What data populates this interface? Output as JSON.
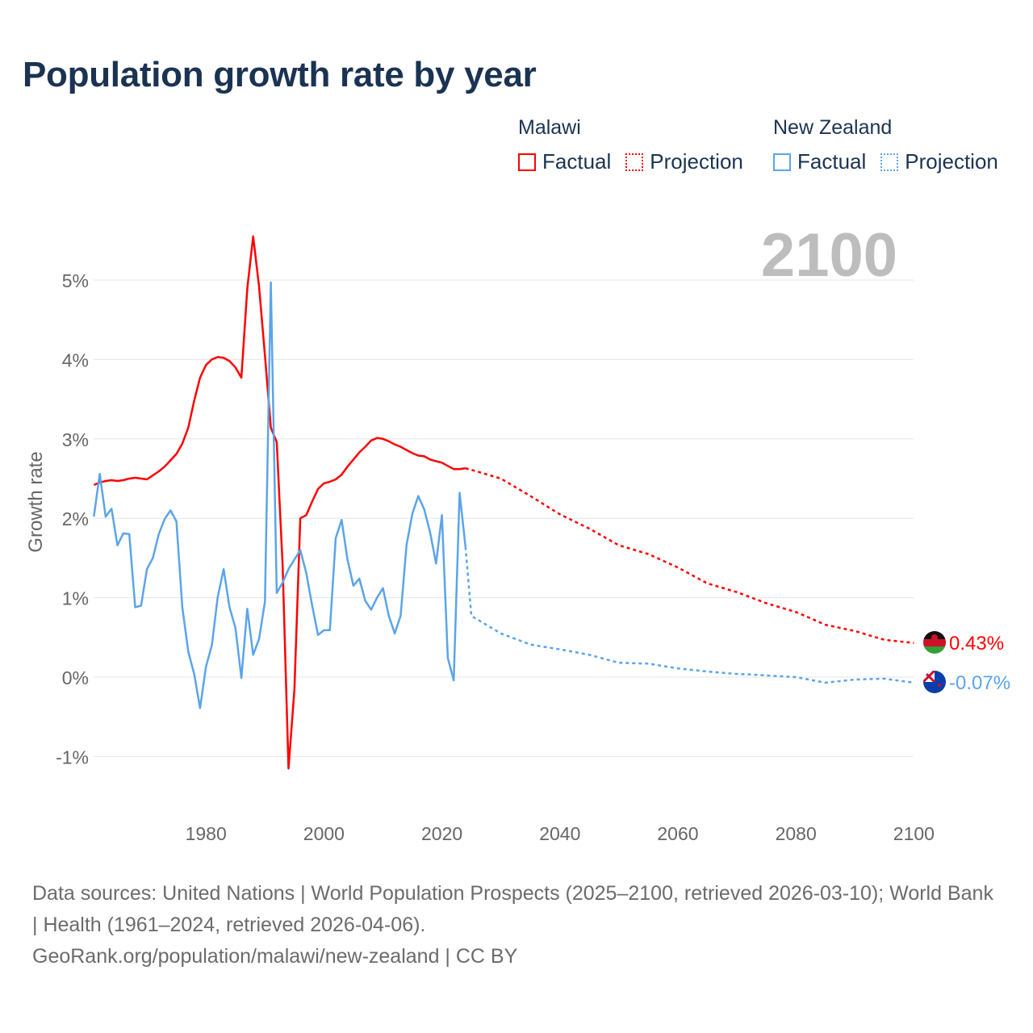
{
  "title": "Population growth rate by year",
  "legend": {
    "groups": [
      {
        "name": "Malawi",
        "factual": "Factual",
        "projection": "Projection",
        "color": "#ff0000"
      },
      {
        "name": "New Zealand",
        "factual": "Factual",
        "projection": "Projection",
        "color": "#5ba4ea"
      }
    ]
  },
  "footer": {
    "sources": "Data sources: United Nations | World Population Prospects (2025–2100, retrieved 2026-03-10); World Bank | Health (1961–2024, retrieved 2026-04-06).",
    "link": "GeoRank.org/population/malawi/new-zealand | CC BY"
  },
  "chart_data": {
    "type": "line",
    "title": "Population growth rate by year",
    "xlabel": "",
    "ylabel": "Growth rate",
    "xlim": [
      1961,
      2100
    ],
    "ylim": [
      -1.5,
      5.6
    ],
    "year_display": "2100",
    "x_ticks": [
      1980,
      2000,
      2020,
      2040,
      2060,
      2080,
      2100
    ],
    "y_ticks": [
      -1,
      0,
      1,
      2,
      3,
      4,
      5
    ],
    "y_tick_labels": [
      "-1%",
      "0%",
      "1%",
      "2%",
      "3%",
      "4%",
      "5%"
    ],
    "grid": true,
    "series": [
      {
        "name": "Malawi",
        "kind": "Factual",
        "color": "#ff0000",
        "dash": false,
        "x": [
          1961,
          1962,
          1963,
          1964,
          1965,
          1966,
          1967,
          1968,
          1969,
          1970,
          1971,
          1972,
          1973,
          1974,
          1975,
          1976,
          1977,
          1978,
          1979,
          1980,
          1981,
          1982,
          1983,
          1984,
          1985,
          1986,
          1987,
          1988,
          1989,
          1990,
          1991,
          1992,
          1993,
          1994,
          1995,
          1996,
          1997,
          1998,
          1999,
          2000,
          2001,
          2002,
          2003,
          2004,
          2005,
          2006,
          2007,
          2008,
          2009,
          2010,
          2011,
          2012,
          2013,
          2014,
          2015,
          2016,
          2017,
          2018,
          2019,
          2020,
          2021,
          2022,
          2023,
          2024
        ],
        "y": [
          2.42,
          2.45,
          2.47,
          2.48,
          2.47,
          2.48,
          2.5,
          2.51,
          2.5,
          2.49,
          2.54,
          2.59,
          2.65,
          2.73,
          2.81,
          2.94,
          3.14,
          3.48,
          3.77,
          3.93,
          4.0,
          4.03,
          4.02,
          3.98,
          3.9,
          3.77,
          4.89,
          5.55,
          4.92,
          4.05,
          3.14,
          2.96,
          1.41,
          -1.15,
          -0.16,
          2.0,
          2.04,
          2.21,
          2.37,
          2.44,
          2.46,
          2.49,
          2.55,
          2.65,
          2.74,
          2.83,
          2.9,
          2.98,
          3.01,
          3.0,
          2.97,
          2.93,
          2.9,
          2.86,
          2.82,
          2.79,
          2.78,
          2.74,
          2.72,
          2.7,
          2.66,
          2.62,
          2.62,
          2.63
        ]
      },
      {
        "name": "Malawi",
        "kind": "Projection",
        "color": "#ff0000",
        "dash": true,
        "x": [
          2024,
          2025,
          2030,
          2035,
          2040,
          2045,
          2050,
          2055,
          2060,
          2065,
          2070,
          2075,
          2080,
          2085,
          2090,
          2095,
          2100
        ],
        "y": [
          2.63,
          2.61,
          2.5,
          2.28,
          2.05,
          1.87,
          1.66,
          1.55,
          1.38,
          1.18,
          1.07,
          0.93,
          0.82,
          0.66,
          0.58,
          0.47,
          0.43
        ]
      },
      {
        "name": "New Zealand",
        "kind": "Factual",
        "color": "#5ba4ea",
        "dash": false,
        "x": [
          1961,
          1962,
          1963,
          1964,
          1965,
          1966,
          1967,
          1968,
          1969,
          1970,
          1971,
          1972,
          1973,
          1974,
          1975,
          1976,
          1977,
          1978,
          1979,
          1980,
          1981,
          1982,
          1983,
          1984,
          1985,
          1986,
          1987,
          1988,
          1989,
          1990,
          1991,
          1992,
          1993,
          1994,
          1995,
          1996,
          1997,
          1998,
          1999,
          2000,
          2001,
          2002,
          2003,
          2004,
          2005,
          2006,
          2007,
          2008,
          2009,
          2010,
          2011,
          2012,
          2013,
          2014,
          2015,
          2016,
          2017,
          2018,
          2019,
          2020,
          2021,
          2022,
          2023,
          2024
        ],
        "y": [
          2.02,
          2.56,
          2.02,
          2.12,
          1.66,
          1.81,
          1.8,
          0.88,
          0.9,
          1.36,
          1.5,
          1.8,
          1.99,
          2.1,
          1.96,
          0.88,
          0.32,
          0.04,
          -0.39,
          0.13,
          0.4,
          1.01,
          1.36,
          0.88,
          0.62,
          -0.01,
          0.86,
          0.28,
          0.48,
          0.95,
          4.97,
          1.06,
          1.19,
          1.36,
          1.48,
          1.6,
          1.31,
          0.9,
          0.53,
          0.59,
          0.59,
          1.75,
          1.98,
          1.48,
          1.15,
          1.24,
          0.96,
          0.85,
          1.0,
          1.12,
          0.77,
          0.55,
          0.77,
          1.66,
          2.06,
          2.28,
          2.11,
          1.82,
          1.43,
          2.04,
          0.24,
          -0.04,
          2.32,
          1.64
        ]
      },
      {
        "name": "New Zealand",
        "kind": "Projection",
        "color": "#5ba4ea",
        "dash": true,
        "x": [
          2024,
          2025,
          2030,
          2035,
          2040,
          2045,
          2050,
          2055,
          2060,
          2065,
          2070,
          2073,
          2075,
          2080,
          2085,
          2090,
          2095,
          2100
        ],
        "y": [
          1.64,
          0.77,
          0.55,
          0.41,
          0.35,
          0.28,
          0.18,
          0.17,
          0.11,
          0.07,
          0.04,
          0.03,
          0.02,
          0.0,
          -0.07,
          -0.03,
          -0.02,
          -0.07
        ]
      }
    ],
    "end_labels": [
      {
        "name": "Malawi",
        "value": "0.43%",
        "color": "#ff0000",
        "y": 0.43
      },
      {
        "name": "New Zealand",
        "value": "-0.07%",
        "color": "#5ba4ea",
        "y": -0.07
      }
    ]
  }
}
